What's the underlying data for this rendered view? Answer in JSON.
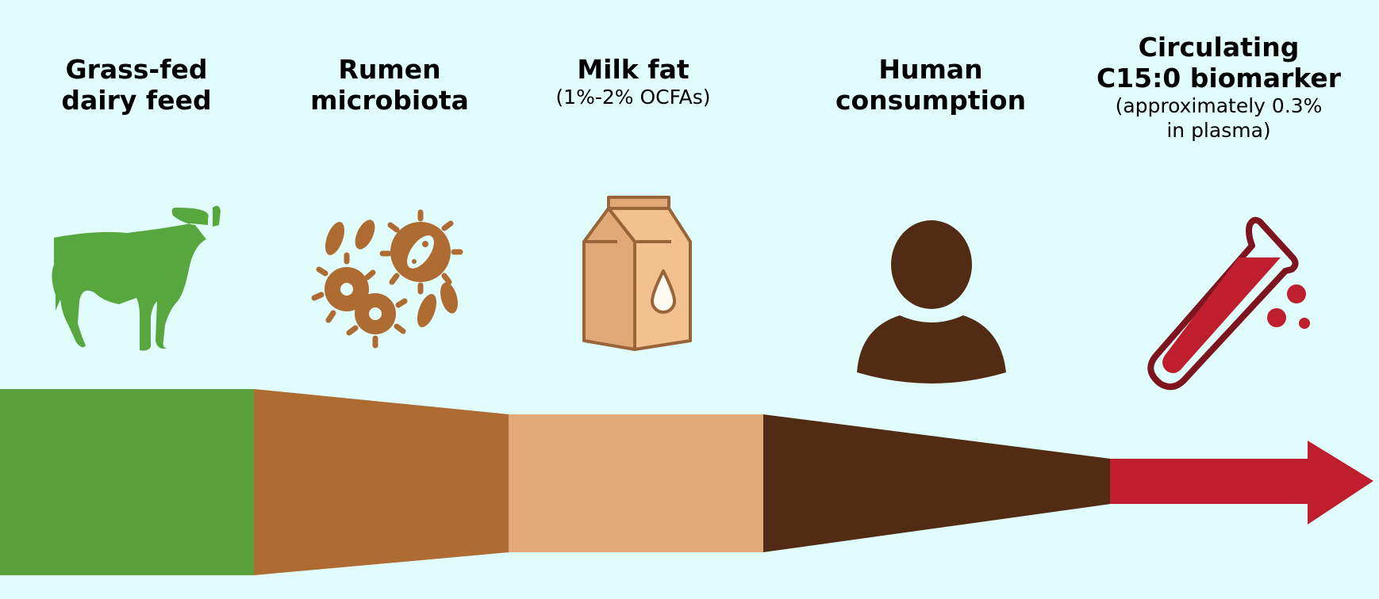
{
  "stages": [
    {
      "title_lines": [
        "Grass-fed",
        "dairy feed"
      ],
      "subtitle_lines": [],
      "icon": "cow-icon",
      "color": "#5aa13b"
    },
    {
      "title_lines": [
        "Rumen",
        "microbiota"
      ],
      "subtitle_lines": [],
      "icon": "bacteria-icon",
      "color": "#ae6b32"
    },
    {
      "title_lines": [
        "Milk fat"
      ],
      "subtitle_lines": [
        "(1%-2% OCFAs)"
      ],
      "icon": "milk-carton-icon",
      "color": "#e1a977"
    },
    {
      "title_lines": [
        "Human",
        "consumption"
      ],
      "subtitle_lines": [],
      "icon": "person-icon",
      "color": "#512b14"
    },
    {
      "title_lines": [
        "Circulating",
        "C15:0 biomarker"
      ],
      "subtitle_lines": [
        "(approximately 0.3%",
        "in plasma)"
      ],
      "icon": "test-tube-icon",
      "color": "#be1e2d"
    }
  ],
  "background": "#e1fdfb"
}
